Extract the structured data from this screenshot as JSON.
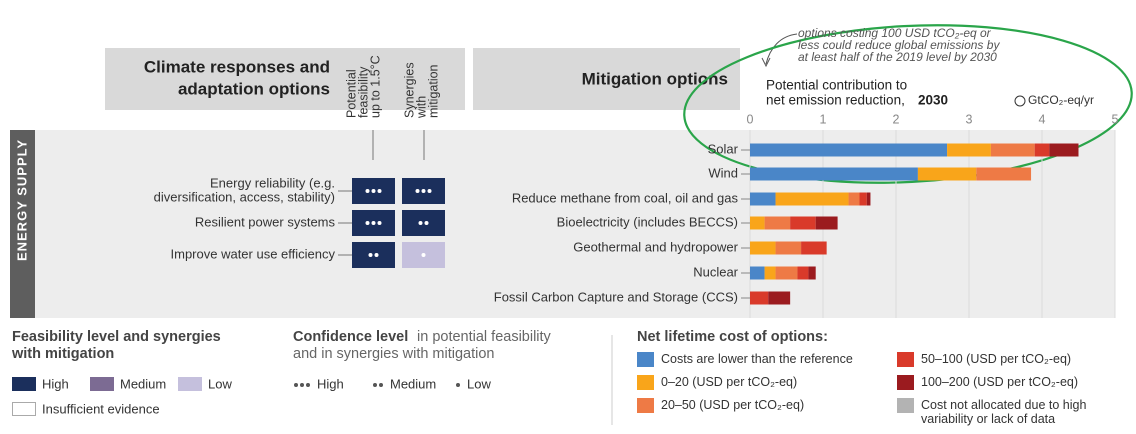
{
  "header": {
    "adaptation_title": [
      "Climate responses and",
      "adaptation options"
    ],
    "feasibility_header": [
      "Potential",
      "feasibility",
      "up to 1.5°C"
    ],
    "synergy_header": [
      "Synergies",
      "with",
      "mitigation"
    ],
    "mitigation_title": "Mitigation options",
    "sector": "ENERGY SUPPLY"
  },
  "annotation": [
    "options costing 100 USD tCO₂-eq or",
    "less could reduce global emissions by",
    "at least half of the 2019 level by 2030"
  ],
  "adaptation": {
    "rows": [
      {
        "label": [
          "Energy reliability (e.g.",
          "diversification, access, stability)"
        ],
        "feasibility": {
          "color": "#1b2f5c",
          "dots": 3
        },
        "synergy": {
          "color": "#1b2f5c",
          "dots": 3
        }
      },
      {
        "label": [
          "Resilient power systems"
        ],
        "feasibility": {
          "color": "#1b2f5c",
          "dots": 3
        },
        "synergy": {
          "color": "#1b2f5c",
          "dots": 2
        }
      },
      {
        "label": [
          "Improve water use efficiency"
        ],
        "feasibility": {
          "color": "#1b2f5c",
          "dots": 2
        },
        "synergy": {
          "color": "#c5c0dd",
          "dots": 1
        }
      }
    ]
  },
  "chart_data": {
    "type": "bar",
    "orientation": "horizontal",
    "stacked": true,
    "title_lines": [
      "Potential contribution to",
      "net emission reduction,"
    ],
    "title_year": "2030",
    "unit": "GtCO₂-eq/yr",
    "categories": [
      "Solar",
      "Wind",
      "Reduce methane from coal, oil and gas",
      "Bioelectricity (includes BECCS)",
      "Geothermal and hydropower",
      "Nuclear",
      "Fossil Carbon Capture and Storage (CCS)"
    ],
    "series": [
      {
        "name": "Costs are lower than the reference",
        "color": "#4a86c8",
        "values": [
          2.7,
          2.3,
          0.35,
          0,
          0,
          0.2,
          0
        ]
      },
      {
        "name": "0–20 (USD per tCO₂-eq)",
        "color": "#f9a51a",
        "values": [
          0.6,
          0.8,
          1.0,
          0.2,
          0.35,
          0.15,
          0
        ]
      },
      {
        "name": "20–50 (USD per tCO₂-eq)",
        "color": "#ee7a45",
        "values": [
          0.6,
          0.75,
          0.15,
          0.35,
          0.35,
          0.3,
          0
        ]
      },
      {
        "name": "50–100 (USD per tCO₂-eq)",
        "color": "#d93a2a",
        "values": [
          0.2,
          0,
          0.1,
          0.35,
          0.35,
          0.15,
          0.25
        ]
      },
      {
        "name": "100–200 (USD per tCO₂-eq)",
        "color": "#9b1b1f",
        "values": [
          0.4,
          0,
          0.05,
          0.3,
          0,
          0.1,
          0.3
        ]
      },
      {
        "name": "Cost not allocated due to high variability or lack of data",
        "color": "#b3b3b3",
        "values": [
          0,
          0,
          0,
          0,
          0,
          0,
          0
        ]
      }
    ],
    "xlim": [
      0,
      5
    ],
    "xticks": [
      0,
      1,
      2,
      3,
      4,
      5
    ],
    "legend_title": "Net lifetime cost of options:"
  },
  "legends": {
    "feasibility": {
      "title": [
        "Feasibility level and synergies",
        "with mitigation"
      ],
      "items": [
        {
          "label": "High",
          "color": "#1b2f5c"
        },
        {
          "label": "Medium",
          "color": "#7c6b93"
        },
        {
          "label": "Low",
          "color": "#c5c0dd"
        }
      ],
      "insufficient": "Insufficient evidence"
    },
    "confidence": {
      "title_bold": "Confidence level",
      "title_rest": [
        "in potential feasibility",
        "and in synergies with mitigation"
      ],
      "items": [
        {
          "label": "High",
          "dots": 3
        },
        {
          "label": "Medium",
          "dots": 2
        },
        {
          "label": "Low",
          "dots": 1
        }
      ]
    }
  }
}
